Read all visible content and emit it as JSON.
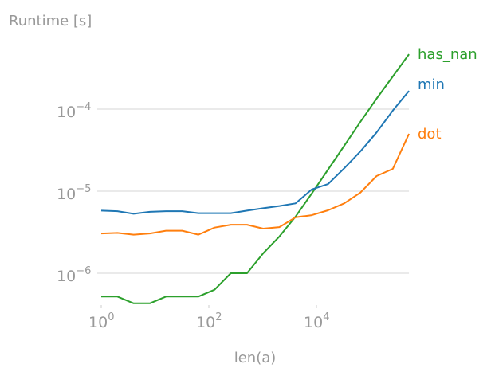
{
  "chart_data": {
    "type": "line",
    "title": "",
    "ylabel": "Runtime [s]",
    "xlabel": "len(a)",
    "xscale": "log",
    "yscale": "log",
    "xlim": [
      1,
      524288
    ],
    "ylim": [
      4.1e-07,
      0.0006
    ],
    "grid": "y-major",
    "legend": "inline-right",
    "x_ticks": [
      {
        "base": "10",
        "exp": "0",
        "value": 1
      },
      {
        "base": "10",
        "exp": "2",
        "value": 100
      },
      {
        "base": "10",
        "exp": "4",
        "value": 10000
      }
    ],
    "y_ticks": [
      {
        "base": "10",
        "exp": "−4",
        "value": 0.0001
      },
      {
        "base": "10",
        "exp": "−5",
        "value": 1e-05
      },
      {
        "base": "10",
        "exp": "−6",
        "value": 1e-06
      }
    ],
    "x": [
      1,
      2,
      4,
      8,
      16,
      32,
      64,
      128,
      256,
      512,
      1024,
      2048,
      4096,
      8192,
      16384,
      32768,
      65536,
      131072,
      262144,
      524288
    ],
    "series": [
      {
        "name": "has_nan",
        "color": "#2ca02c",
        "values": [
          5.2e-07,
          5.2e-07,
          4.3e-07,
          4.3e-07,
          5.2e-07,
          5.2e-07,
          5.2e-07,
          6.3e-07,
          1e-06,
          1e-06,
          1.75e-06,
          2.8e-06,
          4.9e-06,
          9.4e-06,
          1.83e-05,
          3.57e-05,
          7e-05,
          0.000134,
          0.00025,
          0.000467
        ]
      },
      {
        "name": "min",
        "color": "#1f77b4",
        "values": [
          5.8e-06,
          5.7e-06,
          5.3e-06,
          5.6e-06,
          5.7e-06,
          5.7e-06,
          5.4e-06,
          5.4e-06,
          5.4e-06,
          5.8e-06,
          6.2e-06,
          6.6e-06,
          7.1e-06,
          1.05e-05,
          1.22e-05,
          1.9e-05,
          3.05e-05,
          5.2e-05,
          9.6e-05,
          0.000167
        ]
      },
      {
        "name": "dot",
        "color": "#ff7f0e",
        "values": [
          3.05e-06,
          3.1e-06,
          2.95e-06,
          3.05e-06,
          3.3e-06,
          3.3e-06,
          2.95e-06,
          3.6e-06,
          3.9e-06,
          3.9e-06,
          3.5e-06,
          3.65e-06,
          4.8e-06,
          5.1e-06,
          5.85e-06,
          7.1e-06,
          9.6e-06,
          1.53e-05,
          1.87e-05,
          5e-05
        ]
      }
    ]
  }
}
